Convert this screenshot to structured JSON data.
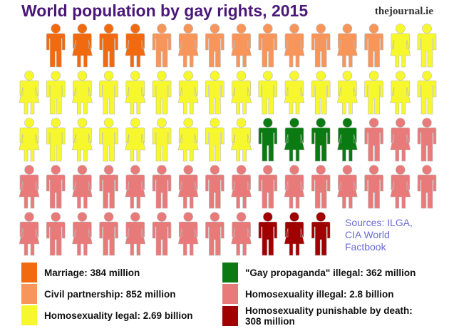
{
  "chart_data": {
    "type": "pictogram",
    "title": "World population by gay rights, 2015",
    "source_brand": "thejournal.ie",
    "sources": "Sources: ILGA, CIA World Factbook",
    "series": [
      {
        "name": "Marriage: 384 million",
        "color": "#f26a10",
        "value": 384
      },
      {
        "name": "Civil partnership: 852 million",
        "color": "#f7955a",
        "value": 852
      },
      {
        "name": "Homosexuality legal: 2.69 billion",
        "color": "#f7f72e",
        "value": 2690
      },
      {
        "name": "\"Gay propaganda\" illegal: 362 million",
        "color": "#0b7a12",
        "value": 362
      },
      {
        "name": "Homosexuality illegal: 2.8 billion",
        "color": "#e97a7a",
        "value": 2800
      },
      {
        "name": "Homosexuality punishable by death: 308 million",
        "color": "#a00000",
        "value": 308
      }
    ]
  }
}
